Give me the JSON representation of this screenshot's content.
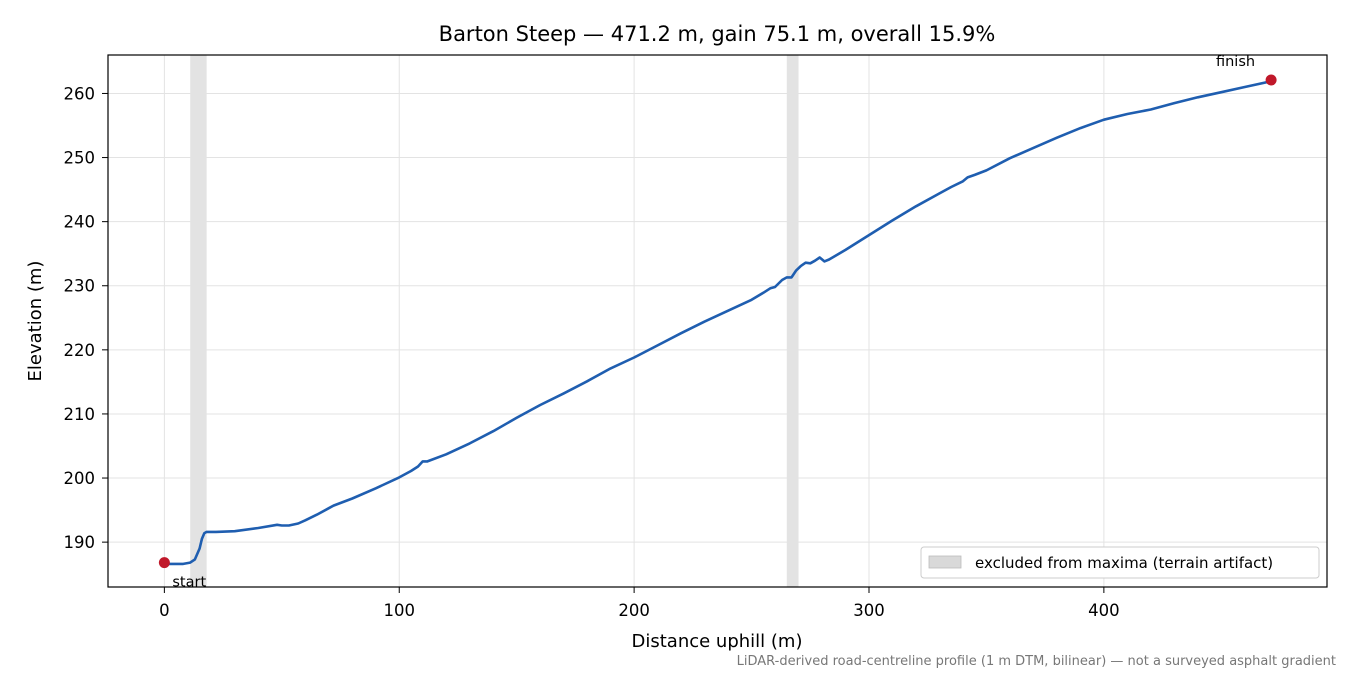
{
  "chart_data": {
    "type": "line",
    "title": "Barton Steep — 471.2 m, gain 75.1 m, overall 15.9%",
    "xlabel": "Distance uphill (m)",
    "ylabel": "Elevation (m)",
    "footnote": "LiDAR-derived road-centreline profile (1 m DTM, bilinear) — not a surveyed asphalt gradient",
    "xlim": [
      -24,
      495
    ],
    "ylim": [
      183,
      266
    ],
    "xticks": [
      0,
      100,
      200,
      300,
      400
    ],
    "yticks": [
      190,
      200,
      210,
      220,
      230,
      240,
      250,
      260
    ],
    "grid": true,
    "legend": {
      "placement": "lower-right",
      "entries": [
        {
          "label": "excluded from maxima (terrain artifact)",
          "color": "#d9d9d9",
          "kind": "band"
        }
      ]
    },
    "excluded_bands": [
      {
        "x0": 11,
        "x1": 18
      },
      {
        "x0": 265,
        "x1": 270
      }
    ],
    "series": [
      {
        "color": "#1f5eb0",
        "points": [
          [
            0,
            186.6
          ],
          [
            5,
            186.6
          ],
          [
            8,
            186.6
          ],
          [
            11,
            186.8
          ],
          [
            13,
            187.3
          ],
          [
            15,
            189.0
          ],
          [
            16,
            190.5
          ],
          [
            17,
            191.4
          ],
          [
            18,
            191.6
          ],
          [
            22,
            191.6
          ],
          [
            30,
            191.7
          ],
          [
            40,
            192.2
          ],
          [
            48,
            192.7
          ],
          [
            50,
            192.6
          ],
          [
            53,
            192.6
          ],
          [
            57,
            192.9
          ],
          [
            60,
            193.4
          ],
          [
            65,
            194.3
          ],
          [
            70,
            195.3
          ],
          [
            72,
            195.7
          ],
          [
            80,
            196.8
          ],
          [
            90,
            198.4
          ],
          [
            100,
            200.1
          ],
          [
            105,
            201.1
          ],
          [
            108,
            201.8
          ],
          [
            110,
            202.6
          ],
          [
            112,
            202.6
          ],
          [
            120,
            203.7
          ],
          [
            130,
            205.4
          ],
          [
            140,
            207.3
          ],
          [
            150,
            209.4
          ],
          [
            160,
            211.4
          ],
          [
            170,
            213.2
          ],
          [
            180,
            215.1
          ],
          [
            190,
            217.1
          ],
          [
            200,
            218.8
          ],
          [
            210,
            220.7
          ],
          [
            220,
            222.6
          ],
          [
            230,
            224.4
          ],
          [
            240,
            226.1
          ],
          [
            250,
            227.8
          ],
          [
            255,
            228.9
          ],
          [
            258,
            229.6
          ],
          [
            260,
            229.8
          ],
          [
            263,
            230.9
          ],
          [
            265,
            231.3
          ],
          [
            267,
            231.3
          ],
          [
            269,
            232.4
          ],
          [
            271,
            233.1
          ],
          [
            273,
            233.6
          ],
          [
            275,
            233.5
          ],
          [
            277,
            233.9
          ],
          [
            279,
            234.4
          ],
          [
            281,
            233.8
          ],
          [
            283,
            234.1
          ],
          [
            290,
            235.6
          ],
          [
            300,
            237.9
          ],
          [
            310,
            240.2
          ],
          [
            320,
            242.4
          ],
          [
            330,
            244.4
          ],
          [
            335,
            245.4
          ],
          [
            340,
            246.3
          ],
          [
            342,
            246.9
          ],
          [
            345,
            247.3
          ],
          [
            350,
            248.0
          ],
          [
            360,
            249.9
          ],
          [
            370,
            251.5
          ],
          [
            380,
            253.1
          ],
          [
            390,
            254.6
          ],
          [
            400,
            255.9
          ],
          [
            410,
            256.8
          ],
          [
            420,
            257.5
          ],
          [
            430,
            258.5
          ],
          [
            440,
            259.4
          ],
          [
            450,
            260.2
          ],
          [
            460,
            261.0
          ],
          [
            471.2,
            261.9
          ]
        ]
      }
    ],
    "annotations": [
      {
        "text": "start",
        "x": 0,
        "y": 186.8,
        "marker_color": "#c0182a"
      },
      {
        "text": "finish",
        "x": 471.2,
        "y": 262.1,
        "marker_color": "#c0182a"
      }
    ]
  }
}
